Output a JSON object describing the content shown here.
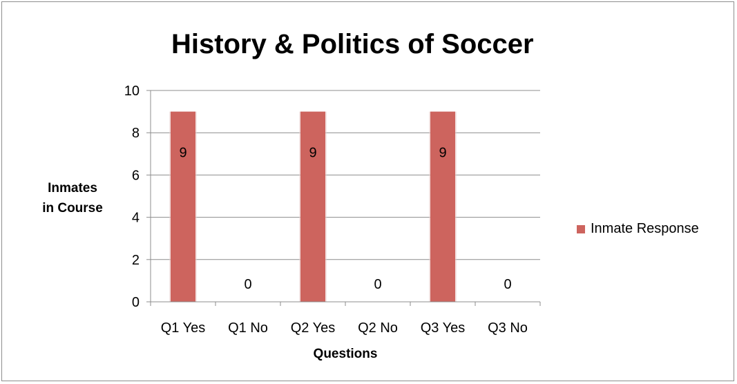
{
  "chart_data": {
    "type": "bar",
    "title": "History & Politics of Soccer",
    "xlabel": "Questions",
    "ylabel_lines": [
      "Inmates",
      "in Course"
    ],
    "categories": [
      "Q1 Yes",
      "Q1 No",
      "Q2 Yes",
      "Q2 No",
      "Q3 Yes",
      "Q3 No"
    ],
    "series": [
      {
        "name": "Inmate Response",
        "values": [
          9,
          0,
          9,
          0,
          9,
          0
        ],
        "color": "#cd645e"
      }
    ],
    "ylim": [
      0,
      10
    ],
    "yticks": [
      0,
      2,
      4,
      6,
      8,
      10
    ],
    "grid": true,
    "legend_position": "right",
    "data_labels": true
  }
}
